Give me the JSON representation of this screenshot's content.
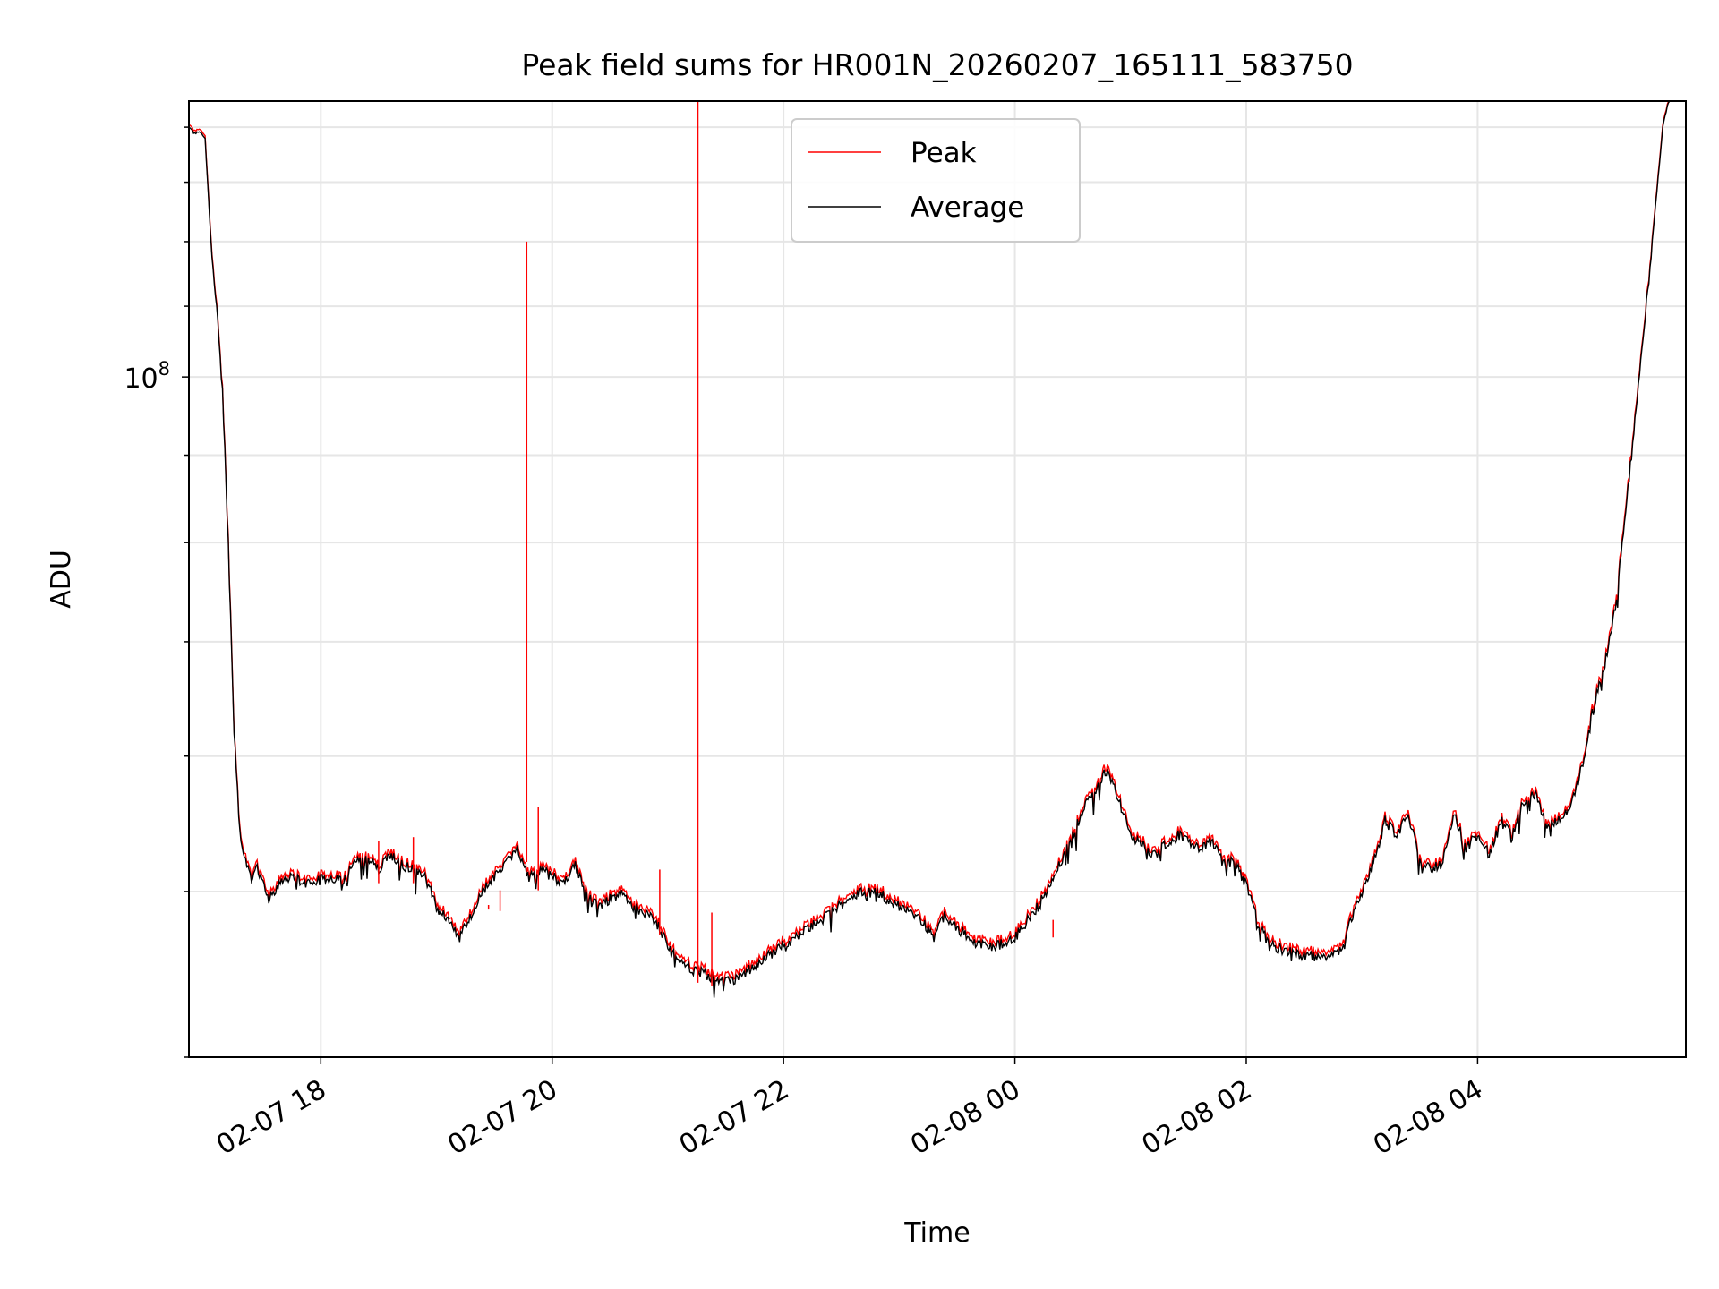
{
  "chart_data": {
    "type": "line",
    "title": "Peak field sums for HR001N_20260207_165111_583750",
    "xlabel": "Time",
    "ylabel": "ADU",
    "y_scale": "log",
    "y_tick_label": {
      "base": "10",
      "exp": "8",
      "value": 100000000
    },
    "ylim": [
      40000000,
      145000000
    ],
    "x_units": "hours since 2026-02-07 00:00",
    "xlim": [
      16.86,
      29.8
    ],
    "x_ticks": [
      {
        "x": 18,
        "label": "02-07 18"
      },
      {
        "x": 20,
        "label": "02-07 20"
      },
      {
        "x": 22,
        "label": "02-07 22"
      },
      {
        "x": 24,
        "label": "02-08 00"
      },
      {
        "x": 26,
        "label": "02-08 02"
      },
      {
        "x": 28,
        "label": "02-08 04"
      }
    ],
    "grid": true,
    "legend": {
      "placement": "top-center",
      "entries": [
        "Peak",
        "Average"
      ]
    },
    "series": [
      {
        "name": "Average",
        "color": "#000000",
        "x": [
          16.86,
          16.9,
          16.95,
          17.0,
          17.05,
          17.1,
          17.15,
          17.2,
          17.25,
          17.3,
          17.35,
          17.4,
          17.45,
          17.5,
          17.55,
          17.6,
          17.65,
          17.7,
          17.8,
          17.9,
          18.0,
          18.1,
          18.2,
          18.3,
          18.4,
          18.5,
          18.6,
          18.7,
          18.8,
          18.9,
          19.0,
          19.1,
          19.2,
          19.3,
          19.4,
          19.5,
          19.6,
          19.7,
          19.8,
          19.9,
          20.0,
          20.1,
          20.2,
          20.3,
          20.4,
          20.5,
          20.6,
          20.7,
          20.8,
          20.9,
          21.0,
          21.1,
          21.2,
          21.3,
          21.4,
          21.5,
          21.6,
          21.7,
          21.8,
          21.9,
          22.0,
          22.2,
          22.4,
          22.6,
          22.8,
          23.0,
          23.2,
          23.3,
          23.4,
          23.5,
          23.6,
          23.7,
          23.8,
          23.9,
          24.0,
          24.2,
          24.4,
          24.6,
          24.8,
          25.0,
          25.2,
          25.4,
          25.6,
          25.7,
          25.8,
          25.9,
          26.0,
          26.1,
          26.2,
          26.3,
          26.4,
          26.5,
          26.6,
          26.8,
          27.0,
          27.1,
          27.2,
          27.3,
          27.4,
          27.5,
          27.6,
          27.7,
          27.8,
          27.9,
          28.0,
          28.1,
          28.2,
          28.3,
          28.4,
          28.5,
          28.6,
          28.7,
          28.8,
          28.9,
          29.0,
          29.1,
          29.2,
          29.3,
          29.4,
          29.5,
          29.6,
          29.7,
          29.8
        ],
        "y": [
          140000000,
          139000000,
          139000000,
          138000000,
          120000000,
          110000000,
          98000000,
          80000000,
          62000000,
          54000000,
          52000000,
          51000000,
          51500000,
          50500000,
          49500000,
          50000000,
          50500000,
          51000000,
          50800000,
          50500000,
          50800000,
          51000000,
          50700000,
          52000000,
          52300000,
          51500000,
          52500000,
          51800000,
          51500000,
          51000000,
          49000000,
          48000000,
          47000000,
          48500000,
          50000000,
          51000000,
          52000000,
          53000000,
          51000000,
          51500000,
          51000000,
          50500000,
          51800000,
          50000000,
          49000000,
          49500000,
          50000000,
          49000000,
          48500000,
          48000000,
          46500000,
          45500000,
          45000000,
          44800000,
          44500000,
          44300000,
          44500000,
          45000000,
          45500000,
          46000000,
          46500000,
          47500000,
          48500000,
          49800000,
          50000000,
          49000000,
          48000000,
          47000000,
          48500000,
          47500000,
          47000000,
          46500000,
          46400000,
          46600000,
          47000000,
          49000000,
          52000000,
          56000000,
          59000000,
          54000000,
          52500000,
          54000000,
          53000000,
          53500000,
          52000000,
          52000000,
          50500000,
          48000000,
          46500000,
          46300000,
          46000000,
          45900000,
          45800000,
          46000000,
          50000000,
          52000000,
          55000000,
          54000000,
          55500000,
          52000000,
          51500000,
          52000000,
          55500000,
          53000000,
          54000000,
          52500000,
          55000000,
          54000000,
          56500000,
          57000000,
          54500000,
          55000000,
          56000000,
          59000000,
          64000000,
          68000000,
          74000000,
          86000000,
          100000000,
          118000000,
          140000000,
          150000000,
          150000000
        ]
      },
      {
        "name": "Peak",
        "color": "#ff0000",
        "x": [
          16.86,
          16.9,
          16.95,
          17.0,
          17.05,
          17.1,
          17.15,
          17.2,
          17.25,
          17.3,
          17.35,
          17.4,
          17.45,
          17.5,
          17.55,
          17.6,
          17.65,
          17.7,
          17.8,
          17.9,
          18.0,
          18.1,
          18.2,
          18.3,
          18.4,
          18.5,
          18.6,
          18.7,
          18.8,
          18.9,
          19.0,
          19.1,
          19.2,
          19.3,
          19.4,
          19.5,
          19.6,
          19.7,
          19.8,
          19.9,
          20.0,
          20.1,
          20.2,
          20.3,
          20.4,
          20.5,
          20.6,
          20.7,
          20.8,
          20.9,
          21.0,
          21.1,
          21.2,
          21.3,
          21.4,
          21.5,
          21.6,
          21.7,
          21.8,
          21.9,
          22.0,
          22.2,
          22.4,
          22.6,
          22.8,
          23.0,
          23.2,
          23.3,
          23.4,
          23.5,
          23.6,
          23.7,
          23.8,
          23.9,
          24.0,
          24.2,
          24.4,
          24.6,
          24.8,
          25.0,
          25.2,
          25.4,
          25.6,
          25.7,
          25.8,
          25.9,
          26.0,
          26.1,
          26.2,
          26.3,
          26.4,
          26.5,
          26.6,
          26.8,
          27.0,
          27.1,
          27.2,
          27.3,
          27.4,
          27.5,
          27.6,
          27.7,
          27.8,
          27.9,
          28.0,
          28.1,
          28.2,
          28.3,
          28.4,
          28.5,
          28.6,
          28.7,
          28.8,
          28.9,
          29.0,
          29.1,
          29.2,
          29.3,
          29.4,
          29.5,
          29.6,
          29.7,
          29.8
        ],
        "y": [
          140500000,
          139500000,
          139500000,
          138500000,
          120500000,
          110500000,
          98500000,
          80500000,
          62300000,
          54300000,
          52300000,
          51300000,
          51800000,
          50800000,
          49800000,
          50300000,
          50800000,
          51300000,
          51100000,
          50800000,
          51100000,
          51300000,
          51000000,
          52300000,
          52600000,
          51800000,
          52800000,
          52100000,
          51800000,
          51300000,
          49300000,
          48300000,
          47300000,
          48800000,
          50300000,
          51300000,
          52300000,
          53300000,
          51300000,
          51800000,
          51300000,
          50800000,
          52100000,
          50300000,
          49300000,
          49800000,
          50300000,
          49300000,
          48800000,
          48300000,
          46800000,
          45800000,
          45300000,
          45100000,
          44800000,
          44600000,
          44800000,
          45300000,
          45800000,
          46300000,
          46800000,
          47800000,
          48800000,
          50100000,
          50300000,
          49300000,
          48300000,
          47300000,
          48800000,
          47800000,
          47300000,
          46800000,
          46700000,
          46900000,
          47300000,
          49300000,
          52300000,
          56300000,
          59400000,
          54300000,
          52800000,
          54300000,
          53300000,
          53800000,
          52300000,
          52300000,
          50800000,
          48300000,
          46800000,
          46600000,
          46300000,
          46200000,
          46100000,
          46300000,
          50300000,
          52300000,
          55300000,
          54300000,
          55800000,
          52300000,
          51800000,
          52300000,
          55800000,
          53300000,
          54300000,
          52800000,
          55300000,
          54300000,
          56800000,
          57300000,
          54800000,
          55300000,
          56300000,
          59300000,
          64400000,
          68400000,
          74500000,
          86500000,
          100500000,
          118500000,
          140500000,
          150000000,
          150000000
        ]
      }
    ],
    "peak_spikes": [
      {
        "x": 19.78,
        "y": 120000000
      },
      {
        "x": 19.88,
        "y": 56000000
      },
      {
        "x": 21.26,
        "y": 200000000
      },
      {
        "x": 18.5,
        "y": 53500000
      },
      {
        "x": 18.8,
        "y": 53800000
      },
      {
        "x": 19.45,
        "y": 48800000
      },
      {
        "x": 19.55,
        "y": 48700000
      },
      {
        "x": 20.93,
        "y": 51500000
      },
      {
        "x": 21.38,
        "y": 48600000
      },
      {
        "x": 24.33,
        "y": 47000000
      }
    ],
    "colors": {
      "peak": "#ff0000",
      "average": "#000000",
      "grid": "#e6e6e6",
      "legend_border": "#cccccc"
    }
  }
}
